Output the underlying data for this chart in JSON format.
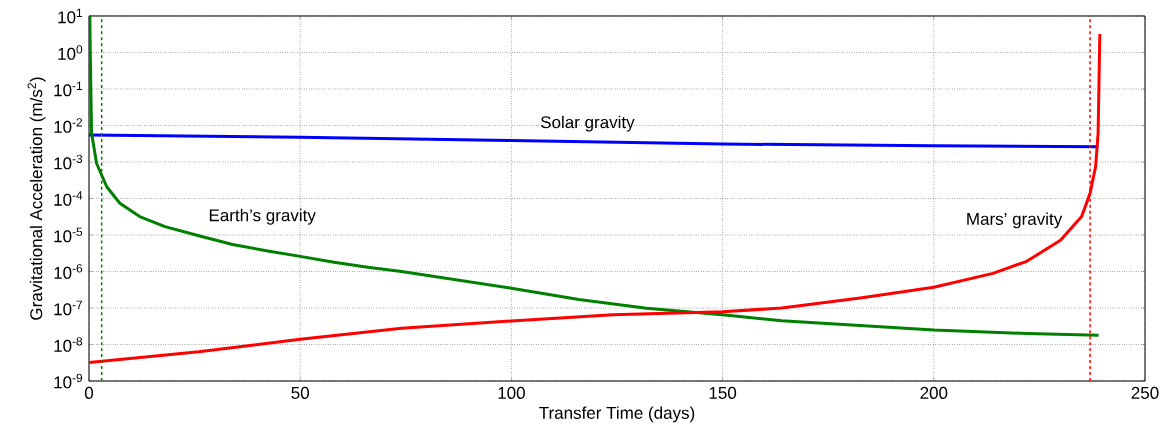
{
  "chart_data": {
    "type": "line",
    "xlabel": "Transfer Time (days)",
    "ylabel": "Gravitational Acceleration (m/s$^{2}$)",
    "log": "y",
    "grid": true,
    "xlim": [
      0,
      250
    ],
    "xticks": [
      0,
      50,
      100,
      150,
      200,
      250
    ],
    "ylim": [
      1e-09,
      10
    ],
    "yticks": [
      {
        "value": 10,
        "label": "10$^{1}$"
      },
      {
        "value": 1,
        "label": "10$^{0}$"
      },
      {
        "value": 0.1,
        "label": "10$^{-1}$"
      },
      {
        "value": 0.01,
        "label": "10$^{-2}$"
      },
      {
        "value": 0.001,
        "label": "10$^{-3}$"
      },
      {
        "value": 0.0001,
        "label": "10$^{-4}$"
      },
      {
        "value": 1e-05,
        "label": "10$^{-5}$"
      },
      {
        "value": 1e-06,
        "label": "10$^{-6}$"
      },
      {
        "value": 1e-07,
        "label": "10$^{-7}$"
      },
      {
        "value": 1e-08,
        "label": "10$^{-8}$"
      },
      {
        "value": 1e-09,
        "label": "10$^{-9}$"
      }
    ],
    "series": [
      {
        "name": "Solar gravity",
        "color": "#0000ff",
        "x": [
          0,
          50,
          100,
          150,
          200,
          239
        ],
        "values": [
          0.0055,
          0.0048,
          0.0039,
          0.0031,
          0.0028,
          0.0026
        ]
      },
      {
        "name": "Earth’s gravity",
        "color": "#008000",
        "x": [
          0.2,
          0.3,
          0.6,
          1.8,
          4.2,
          7.3,
          12,
          18,
          26,
          34,
          42,
          50,
          58,
          66,
          74,
          100,
          116,
          132,
          150,
          164,
          200,
          222,
          239
        ],
        "values": [
          10,
          1,
          0.0063,
          0.00091,
          0.00021,
          7.4e-05,
          3.2e-05,
          1.7e-05,
          9.5e-06,
          5.5e-06,
          3.7e-06,
          2.6e-06,
          1.8e-06,
          1.3e-06,
          1e-06,
          3.5e-07,
          1.7e-07,
          9.8e-08,
          6.5e-08,
          4.5e-08,
          2.5e-08,
          2e-08,
          1.8e-08
        ]
      },
      {
        "name": "Mars’ gravity",
        "color": "#ff0000",
        "x": [
          0,
          26,
          50,
          74,
          100,
          124,
          150,
          164,
          183,
          200,
          214,
          222,
          230,
          235,
          237,
          238.3,
          238.9,
          239.1,
          239.3
        ],
        "values": [
          3.2e-09,
          6.3e-09,
          1.4e-08,
          2.8e-08,
          4.4e-08,
          6.5e-08,
          7.9e-08,
          1e-07,
          1.9e-07,
          3.7e-07,
          8.9e-07,
          1.9e-06,
          7.2e-06,
          3.2e-05,
          0.00014,
          0.00074,
          0.0062,
          0.14,
          3.2
        ]
      }
    ],
    "ref_lines": [
      {
        "axis": "x",
        "value": 3,
        "color": "#008000",
        "line_style": "dashed"
      },
      {
        "axis": "x",
        "value": 237,
        "color": "#ff0000",
        "line_style": "dashed"
      }
    ]
  }
}
